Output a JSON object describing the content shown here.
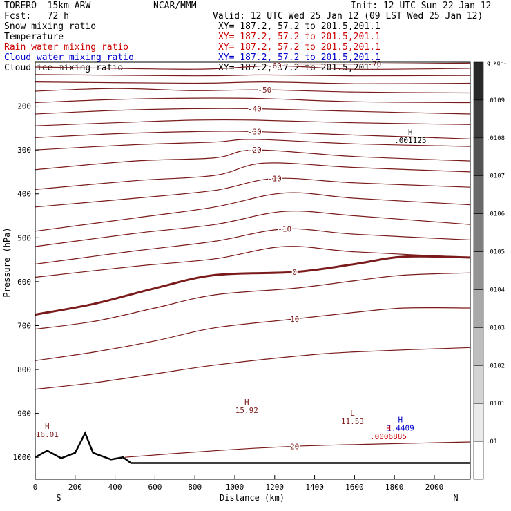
{
  "header": {
    "model": "TORERO  15km ARW",
    "center": "NCAR/MMM",
    "init": "Init: 12 UTC Sun 22 Jan 12",
    "fcst": "Fcst:   72 h",
    "valid": "Valid: 12 UTC Wed 25 Jan 12 (09 LST Wed 25 Jan 12)"
  },
  "legend": [
    {
      "label": "Snow mixing ratio",
      "xy": "XY= 187.2, 57.2 to 201.5,201.1",
      "color": "#000000"
    },
    {
      "label": "Temperature",
      "xy": "XY= 187.2, 57.2 to 201.5,201.1",
      "color": "#8b0000"
    },
    {
      "label": "Rain water mixing ratio",
      "xy": "XY= 187.2, 57.2 to 201.5,201.1",
      "color": "#cc0000"
    },
    {
      "label": "Cloud water mixing ratio",
      "xy": "XY= 187.2, 57.2 to 201.5,201.1",
      "color": "#0000cc"
    },
    {
      "label": "Cloud ice mixing ratio",
      "xy": "XY= 187.2, 57.2 to 201.5,201.1",
      "color": "#000000"
    }
  ],
  "colors": {
    "temperature": "#7a1a1a",
    "blue": "#0000cc",
    "red": "#cc0000",
    "terrain": "#000000"
  },
  "chart_data": {
    "type": "cross-section contour",
    "xlabel": "Distance (km)",
    "ylabel": "Pressure (hPa)",
    "xlim": [
      0,
      2180
    ],
    "ylim": [
      1050,
      100
    ],
    "x_ticks": [
      0,
      200,
      400,
      600,
      800,
      1000,
      1200,
      1400,
      1600,
      1800,
      2000
    ],
    "y_ticks": [
      200,
      300,
      400,
      500,
      600,
      700,
      800,
      900,
      1000
    ],
    "endpoints": [
      "S",
      "N"
    ],
    "isotherms": [
      {
        "label": "-60",
        "points": [
          [
            0,
            111
          ],
          [
            800,
            116
          ],
          [
            1200,
            108
          ],
          [
            1600,
            116
          ],
          [
            2180,
            114
          ]
        ]
      },
      {
        "label": "-70",
        "points": [
          [
            1300,
            104
          ],
          [
            1700,
            104
          ],
          [
            2180,
            102
          ]
        ]
      },
      {
        "label": "",
        "points": [
          [
            0,
            128
          ],
          [
            800,
            131
          ],
          [
            1150,
            129
          ],
          [
            1600,
            131
          ],
          [
            2180,
            130
          ]
        ]
      },
      {
        "label": "",
        "points": [
          [
            0,
            145
          ],
          [
            800,
            148
          ],
          [
            1150,
            145
          ],
          [
            1600,
            149
          ],
          [
            2180,
            148
          ]
        ]
      },
      {
        "label": "-50",
        "points": [
          [
            0,
            166
          ],
          [
            400,
            160
          ],
          [
            800,
            165
          ],
          [
            1150,
            163
          ],
          [
            1600,
            168
          ],
          [
            2180,
            170
          ]
        ]
      },
      {
        "label": "",
        "points": [
          [
            0,
            192
          ],
          [
            400,
            185
          ],
          [
            800,
            182
          ],
          [
            1150,
            183
          ],
          [
            1600,
            190
          ],
          [
            2180,
            192
          ]
        ]
      },
      {
        "label": "-40",
        "points": [
          [
            0,
            218
          ],
          [
            400,
            210
          ],
          [
            800,
            206
          ],
          [
            1100,
            206
          ],
          [
            1600,
            212
          ],
          [
            2180,
            218
          ]
        ]
      },
      {
        "label": "",
        "points": [
          [
            0,
            245
          ],
          [
            400,
            238
          ],
          [
            800,
            232
          ],
          [
            1100,
            232
          ],
          [
            1600,
            238
          ],
          [
            2180,
            242
          ]
        ]
      },
      {
        "label": "-30",
        "points": [
          [
            0,
            272
          ],
          [
            400,
            263
          ],
          [
            800,
            258
          ],
          [
            1100,
            258
          ],
          [
            1600,
            266
          ],
          [
            2180,
            275
          ]
        ]
      },
      {
        "label": "",
        "points": [
          [
            0,
            300
          ],
          [
            500,
            288
          ],
          [
            900,
            282
          ],
          [
            1100,
            276
          ],
          [
            1600,
            286
          ],
          [
            2180,
            292
          ]
        ]
      },
      {
        "label": "-20",
        "points": [
          [
            0,
            345
          ],
          [
            500,
            325
          ],
          [
            900,
            318
          ],
          [
            1100,
            300
          ],
          [
            1600,
            315
          ],
          [
            2180,
            325
          ]
        ]
      },
      {
        "label": "",
        "points": [
          [
            0,
            390
          ],
          [
            500,
            370
          ],
          [
            900,
            358
          ],
          [
            1150,
            330
          ],
          [
            1600,
            340
          ],
          [
            2180,
            350
          ]
        ]
      },
      {
        "label": "-10",
        "points": [
          [
            0,
            430
          ],
          [
            500,
            410
          ],
          [
            900,
            392
          ],
          [
            1200,
            365
          ],
          [
            1600,
            375
          ],
          [
            2180,
            385
          ]
        ]
      },
      {
        "label": "",
        "points": [
          [
            0,
            485
          ],
          [
            500,
            455
          ],
          [
            900,
            430
          ],
          [
            1250,
            398
          ],
          [
            1600,
            410
          ],
          [
            2180,
            425
          ]
        ]
      },
      {
        "label": "",
        "points": [
          [
            0,
            520
          ],
          [
            500,
            490
          ],
          [
            900,
            470
          ],
          [
            1250,
            440
          ],
          [
            1600,
            450
          ],
          [
            2180,
            470
          ]
        ]
      },
      {
        "label": "-10",
        "points": [
          [
            0,
            560
          ],
          [
            500,
            530
          ],
          [
            900,
            508
          ],
          [
            1250,
            480
          ],
          [
            1600,
            492
          ],
          [
            2180,
            505
          ]
        ]
      },
      {
        "label": "",
        "points": [
          [
            0,
            590
          ],
          [
            500,
            565
          ],
          [
            900,
            548
          ],
          [
            1250,
            520
          ],
          [
            1600,
            532
          ],
          [
            2180,
            545
          ]
        ]
      },
      {
        "label": "0",
        "bold": true,
        "points": [
          [
            0,
            675
          ],
          [
            300,
            650
          ],
          [
            600,
            615
          ],
          [
            900,
            585
          ],
          [
            1300,
            578
          ],
          [
            1600,
            560
          ],
          [
            1850,
            543
          ],
          [
            2180,
            545
          ]
        ]
      },
      {
        "label": "",
        "points": [
          [
            0,
            708
          ],
          [
            300,
            690
          ],
          [
            600,
            660
          ],
          [
            900,
            630
          ],
          [
            1300,
            615
          ],
          [
            1600,
            598
          ],
          [
            1850,
            585
          ],
          [
            2180,
            580
          ]
        ]
      },
      {
        "label": "10",
        "points": [
          [
            0,
            780
          ],
          [
            300,
            760
          ],
          [
            600,
            735
          ],
          [
            900,
            705
          ],
          [
            1300,
            685
          ],
          [
            1600,
            670
          ],
          [
            1850,
            660
          ],
          [
            2180,
            660
          ]
        ]
      },
      {
        "label": "",
        "points": [
          [
            0,
            845
          ],
          [
            300,
            830
          ],
          [
            600,
            810
          ],
          [
            900,
            790
          ],
          [
            1300,
            770
          ],
          [
            1600,
            760
          ],
          [
            2180,
            750
          ]
        ]
      },
      {
        "label": "20",
        "points": [
          [
            450,
            1000
          ],
          [
            900,
            985
          ],
          [
            1300,
            975
          ],
          [
            1700,
            970
          ],
          [
            2180,
            965
          ]
        ]
      }
    ],
    "highs_lows": [
      {
        "type": "H",
        "value": "16.01",
        "x": 60,
        "p": 935,
        "color": "#7a1a1a"
      },
      {
        "type": "H",
        "value": "15.92",
        "x": 1060,
        "p": 880,
        "color": "#7a1a1a"
      },
      {
        "type": "L",
        "value": "11.53",
        "x": 1590,
        "p": 905,
        "color": "#7a1a1a"
      },
      {
        "type": "H",
        "value": ".001125",
        "x": 1880,
        "p": 265,
        "color": "#000000"
      },
      {
        "type": "H",
        "value": ".0006885",
        "x": 1770,
        "p": 940,
        "color": "#cc0000"
      },
      {
        "type": "H",
        "value": "1.4409",
        "x": 1830,
        "p": 920,
        "color": "#0000cc"
      }
    ],
    "colorbar": {
      "unit": "g kg⁻¹",
      "labels": [
        ".0109",
        ".0108",
        ".0107",
        ".0106",
        ".0105",
        ".0104",
        ".0103",
        ".0102",
        ".0101",
        ".01"
      ]
    },
    "terrain_p": [
      [
        0,
        1000
      ],
      [
        60,
        985
      ],
      [
        130,
        1002
      ],
      [
        200,
        990
      ],
      [
        250,
        945
      ],
      [
        290,
        990
      ],
      [
        380,
        1005
      ],
      [
        440,
        1000
      ],
      [
        480,
        1013
      ],
      [
        2180,
        1013
      ]
    ]
  }
}
